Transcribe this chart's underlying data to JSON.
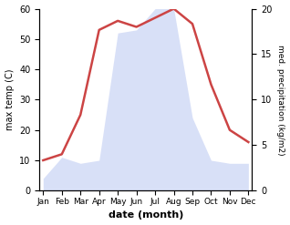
{
  "months": [
    "Jan",
    "Feb",
    "Mar",
    "Apr",
    "May",
    "Jun",
    "Jul",
    "Aug",
    "Sep",
    "Oct",
    "Nov",
    "Dec"
  ],
  "temperature": [
    10,
    12,
    25,
    53,
    56,
    54,
    57,
    60,
    55,
    35,
    20,
    16
  ],
  "precipitation": [
    4,
    11,
    9,
    10,
    52,
    53,
    60,
    60,
    24,
    10,
    9,
    9
  ],
  "temp_color": "#cc4444",
  "precip_color": "#aabbee",
  "ylabel_left": "max temp (C)",
  "ylabel_right": "med. precipitation (kg/m2)",
  "xlabel": "date (month)",
  "ylim_left": [
    0,
    60
  ],
  "ylim_right": [
    0,
    20
  ],
  "fig_width": 3.18,
  "fig_height": 2.47,
  "dpi": 100
}
